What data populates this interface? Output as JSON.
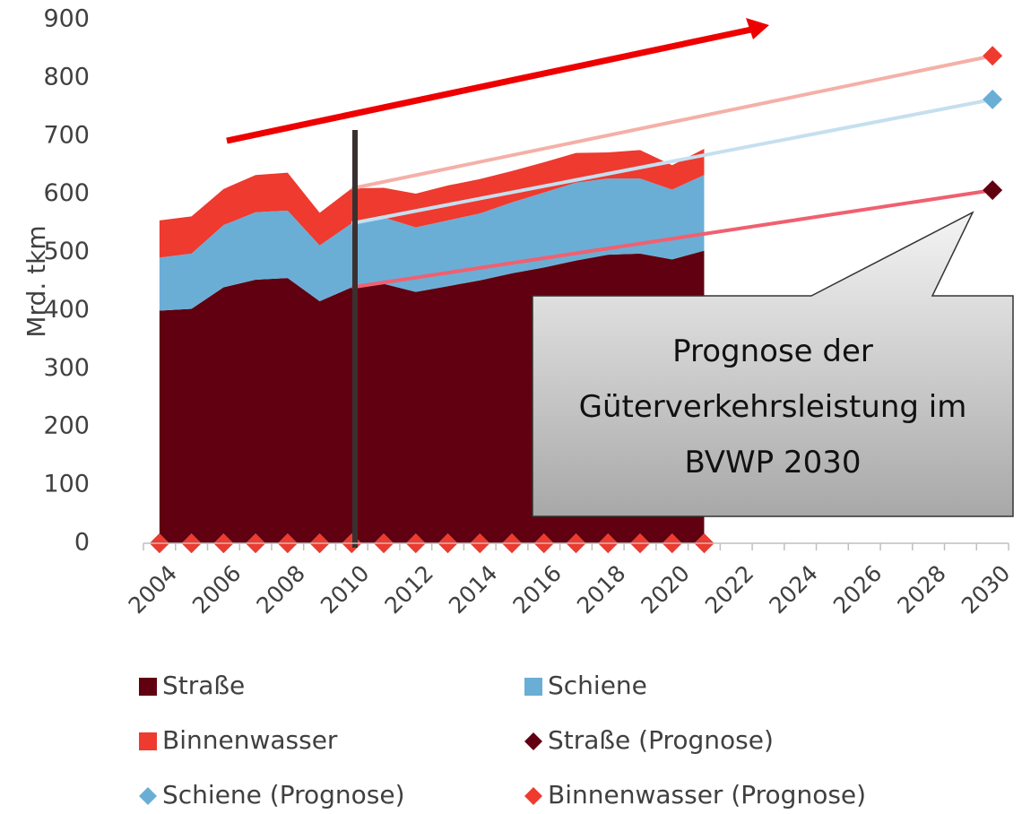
{
  "chart_data": {
    "type": "stacked-area",
    "y_label": "Mrd. tkm",
    "annotation": "Prognose der Güterverkehrsleistung im BVWP 2030",
    "categories": [
      "2004",
      null,
      "2006",
      null,
      "2008",
      null,
      "2010",
      null,
      "2012",
      null,
      "2014",
      null,
      "2016",
      null,
      "2018",
      null,
      "2020",
      null,
      "2022",
      null,
      "2024",
      null,
      "2026",
      null,
      "2028",
      null,
      "2030"
    ],
    "ylim": [
      0,
      900
    ],
    "yticks": [
      0,
      100,
      200,
      300,
      400,
      500,
      600,
      700,
      800,
      900
    ],
    "series": [
      {
        "name": "Straße",
        "color": "#600010",
        "values": [
          400,
          403,
          440,
          453,
          456,
          416,
          440,
          446,
          432,
          442,
          452,
          464,
          474,
          486,
          496,
          498,
          488,
          503,
          null,
          null,
          null,
          null,
          null,
          null,
          null,
          null,
          null
        ]
      },
      {
        "name": "Schiene",
        "color": "#6aaed6",
        "values": [
          91,
          95,
          107,
          116,
          116,
          96,
          110,
          114,
          111,
          113,
          115,
          122,
          129,
          134,
          131,
          129,
          120,
          130,
          null,
          null,
          null,
          null,
          null,
          null,
          null,
          null,
          null
        ]
      },
      {
        "name": "Binnenwasser",
        "color": "#ee3a2f",
        "values": [
          64,
          64,
          62,
          64,
          65,
          56,
          60,
          51,
          58,
          60,
          59,
          54,
          52,
          51,
          45,
          49,
          42,
          45,
          null,
          null,
          null,
          null,
          null,
          null,
          null,
          null,
          null
        ]
      }
    ],
    "forecast_series": [
      {
        "name": "Straße (Prognose)",
        "color": "#600010",
        "line_color": "#f06070",
        "values": [
          0,
          0,
          0,
          0,
          0,
          0,
          0,
          0,
          0,
          0,
          0,
          0,
          0,
          0,
          0,
          0,
          0,
          0,
          null,
          null,
          null,
          null,
          null,
          null,
          null,
          null,
          607
        ]
      },
      {
        "name": "Schiene (Prognose)",
        "color": "#6aaed6",
        "line_color": "#c5dff0",
        "values": [
          0,
          0,
          0,
          0,
          0,
          0,
          0,
          0,
          0,
          0,
          0,
          0,
          0,
          0,
          0,
          0,
          0,
          0,
          null,
          null,
          null,
          null,
          null,
          null,
          null,
          null,
          156
        ]
      },
      {
        "name": "Binnenwasser (Prognose)",
        "color": "#ee3a2f",
        "line_color": "#f4b0a8",
        "values": [
          0,
          0,
          0,
          0,
          0,
          0,
          0,
          0,
          0,
          0,
          0,
          0,
          0,
          0,
          0,
          0,
          0,
          0,
          null,
          null,
          null,
          null,
          null,
          null,
          null,
          null,
          75
        ]
      }
    ]
  }
}
